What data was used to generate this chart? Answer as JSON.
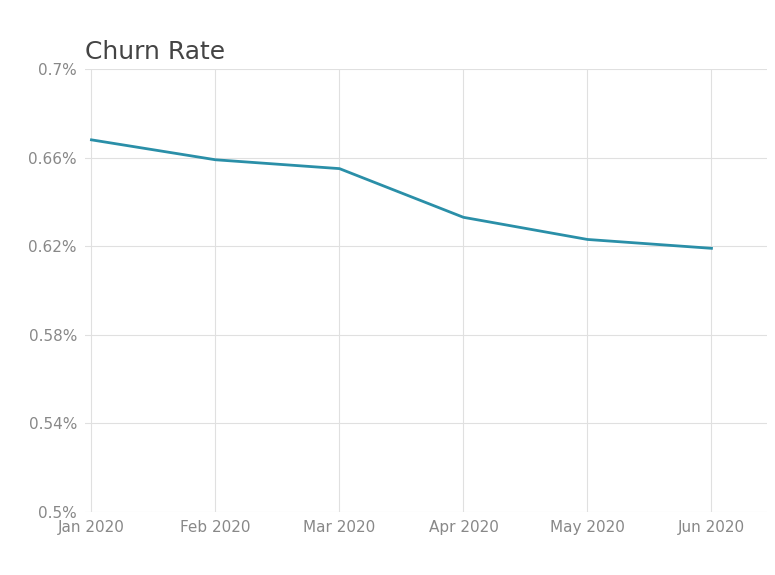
{
  "title": "Churn Rate",
  "x_labels": [
    "Jan 2020",
    "Feb 2020",
    "Mar 2020",
    "Apr 2020",
    "May 2020",
    "Jun 2020"
  ],
  "y_values": [
    0.00668,
    0.00659,
    0.00655,
    0.00633,
    0.00623,
    0.00619
  ],
  "line_color": "#2a8fa8",
  "line_width": 2.0,
  "ylim": [
    0.005,
    0.007
  ],
  "yticks": [
    0.005,
    0.0054,
    0.0058,
    0.0062,
    0.0066,
    0.007
  ],
  "ytick_labels": [
    "0.5%",
    "0.54%",
    "0.58%",
    "0.62%",
    "0.66%",
    "0.7%"
  ],
  "title_fontsize": 18,
  "tick_fontsize": 11,
  "background_color": "#ffffff",
  "grid_color": "#e0e0e0",
  "title_color": "#444444",
  "tick_color": "#888888"
}
